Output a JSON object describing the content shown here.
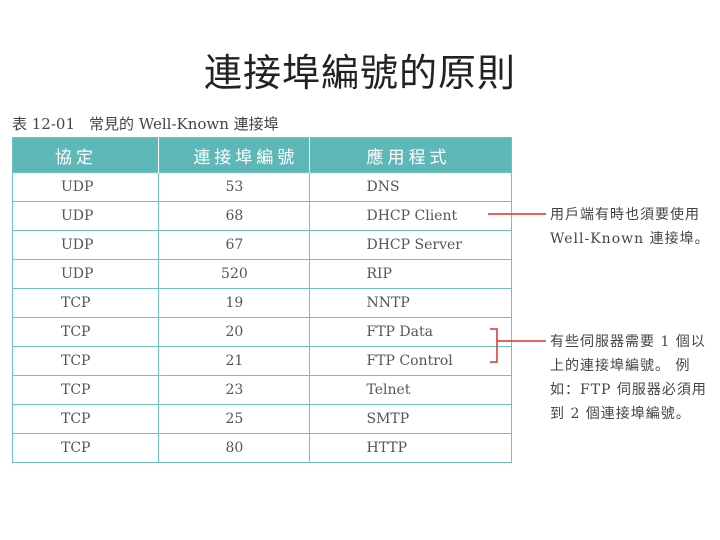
{
  "title": "連接埠編號的原則",
  "caption": {
    "number": "表 12-01",
    "title": "常見的 Well-Known 連接埠"
  },
  "table": {
    "headers": [
      "協定",
      "連接埠編號",
      "應用程式"
    ],
    "rows": [
      [
        "UDP",
        "53",
        "DNS"
      ],
      [
        "UDP",
        "68",
        "DHCP Client"
      ],
      [
        "UDP",
        "67",
        "DHCP Server"
      ],
      [
        "UDP",
        "520",
        "RIP"
      ],
      [
        "TCP",
        "19",
        "NNTP"
      ],
      [
        "TCP",
        "20",
        "FTP Data"
      ],
      [
        "TCP",
        "21",
        "FTP Control"
      ],
      [
        "TCP",
        "23",
        "Telnet"
      ],
      [
        "TCP",
        "25",
        "SMTP"
      ],
      [
        "TCP",
        "80",
        "HTTP"
      ]
    ]
  },
  "annotations": [
    {
      "lines": [
        "用戶端有時也須要使用",
        "Well-Known 連接埠。"
      ]
    },
    {
      "lines": [
        "有些伺服器需要 1 個以",
        "上的連接埠編號。 例",
        "如：FTP 伺服器必須用",
        "到 2 個連接埠編號。"
      ]
    }
  ],
  "colors": {
    "header_bg": "#5fb8b8",
    "border": "#6ec2c2",
    "annotation_line": "#d9342b"
  }
}
